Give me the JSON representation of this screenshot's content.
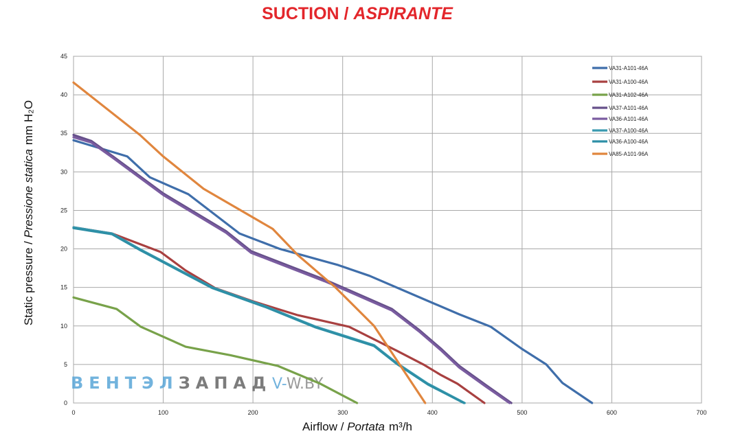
{
  "title": {
    "main": "SUCTION",
    "sep": " / ",
    "italic": "ASPIRANTE"
  },
  "watermark": {
    "part1": "ВЕНТЭЛ",
    "part2": "ЗАПАД",
    "url1": "V-",
    "url2": "W.BY"
  },
  "chart_data": {
    "type": "line",
    "xlabel": {
      "text1": "Airflow",
      "sep": " / ",
      "italic": "Portata",
      "unit": "m³/h"
    },
    "ylabel": {
      "text1": "Static pressure",
      "sep": " / ",
      "italic": "Pressione statica",
      "unit": "mm H₂O"
    },
    "xlim": [
      0,
      700
    ],
    "ylim": [
      0,
      45
    ],
    "xticks": [
      0,
      100,
      200,
      300,
      400,
      500,
      600,
      700
    ],
    "yticks": [
      0,
      5,
      10,
      15,
      20,
      25,
      30,
      35,
      40,
      45
    ],
    "grid": true,
    "legend_position": "top-right",
    "series": [
      {
        "name": "VA31-A101-46A",
        "color": "#3f6eaa",
        "x": [
          0,
          60,
          85,
          128,
          185,
          230,
          295,
          330,
          390,
          430,
          465,
          500,
          527,
          545,
          578
        ],
        "y": [
          34.1,
          32.0,
          29.3,
          27.1,
          22.0,
          20.0,
          17.9,
          16.5,
          13.5,
          11.5,
          9.9,
          7.0,
          5.0,
          2.6,
          0
        ]
      },
      {
        "name": "VA31-A100-46A",
        "color": "#a84040",
        "x": [
          0,
          43,
          97,
          125,
          158,
          200,
          250,
          307,
          360,
          390,
          410,
          428,
          458
        ],
        "y": [
          22.8,
          22.0,
          19.6,
          17.2,
          14.9,
          13.2,
          11.4,
          9.9,
          6.8,
          5.0,
          3.6,
          2.5,
          0
        ]
      },
      {
        "name": "VA31-A102-46A",
        "color": "#78a24a",
        "x": [
          0,
          48,
          75,
          125,
          175,
          228,
          275,
          316
        ],
        "y": [
          13.7,
          12.2,
          9.9,
          7.3,
          6.2,
          4.8,
          2.5,
          0
        ]
      },
      {
        "name": "VA37-A101-46A",
        "color": "#66508a",
        "x": [
          0,
          20,
          44,
          100,
          170,
          198,
          240,
          280,
          310,
          355,
          385,
          410,
          430,
          460,
          488
        ],
        "y": [
          34.8,
          34.0,
          32.0,
          27.2,
          22.3,
          19.7,
          17.8,
          16.0,
          14.5,
          12.2,
          9.5,
          7.0,
          4.8,
          2.3,
          0
        ]
      },
      {
        "name": "VA36-A101-46A",
        "color": "#7a5ca0",
        "x": [
          0,
          20,
          44,
          100,
          170,
          198,
          240,
          280,
          310,
          355,
          385,
          410,
          430,
          460,
          486
        ],
        "y": [
          34.5,
          33.8,
          31.8,
          27.0,
          22.1,
          19.5,
          17.6,
          15.8,
          14.3,
          12.0,
          9.3,
          6.8,
          4.6,
          2.1,
          0
        ]
      },
      {
        "name": "VA37-A100-46A",
        "color": "#3a9ab0",
        "x": [
          0,
          43,
          75,
          155,
          215,
          270,
          335,
          360,
          395,
          436
        ],
        "y": [
          22.8,
          22.0,
          19.9,
          15.0,
          12.5,
          9.9,
          7.5,
          5.2,
          2.5,
          0
        ]
      },
      {
        "name": "VA36-A100-46A",
        "color": "#2d8fa6",
        "x": [
          0,
          43,
          75,
          155,
          215,
          270,
          335,
          360,
          395,
          435
        ],
        "y": [
          22.7,
          21.9,
          19.8,
          14.9,
          12.4,
          9.8,
          7.4,
          5.1,
          2.4,
          0
        ]
      },
      {
        "name": "VA85-A101-96A",
        "color": "#e0863e",
        "x": [
          0,
          74,
          100,
          145,
          222,
          250,
          292,
          335,
          355,
          392
        ],
        "y": [
          41.6,
          34.8,
          32.0,
          27.8,
          22.6,
          19.2,
          15.0,
          10.0,
          6.5,
          0
        ]
      }
    ]
  }
}
